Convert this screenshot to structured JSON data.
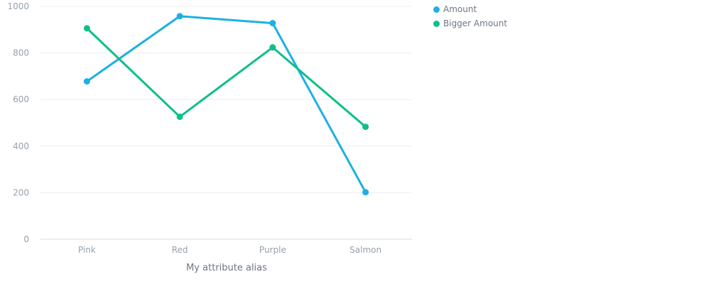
{
  "chart_data": {
    "type": "line",
    "categories": [
      "Pink",
      "Red",
      "Purple",
      "Salmon"
    ],
    "xlabel": "My attribute alias",
    "ylabel": "",
    "ylim": [
      0,
      1000
    ],
    "yticks": [
      "0",
      "200",
      "400",
      "600",
      "800",
      "1000"
    ],
    "grid": true,
    "legend_position": "right",
    "series": [
      {
        "name": "Amount",
        "color": "#1eb0e0",
        "values": [
          678,
          958,
          928,
          202
        ]
      },
      {
        "name": "Bigger Amount",
        "color": "#0dbf89",
        "values": [
          906,
          526,
          824,
          483
        ]
      }
    ]
  }
}
